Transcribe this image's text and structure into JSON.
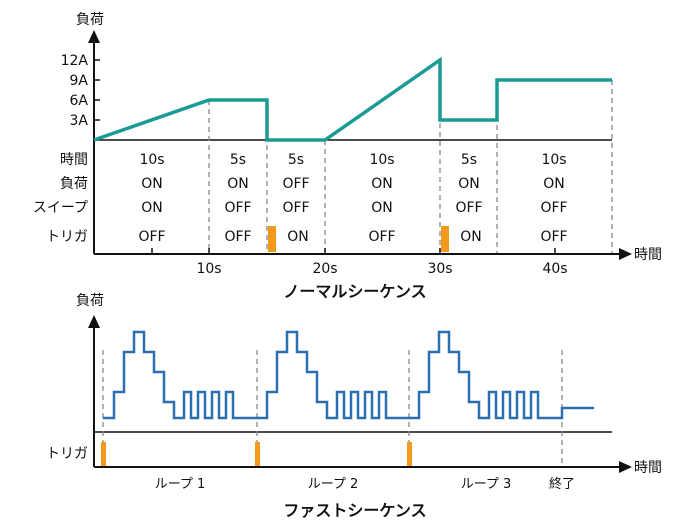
{
  "normal": {
    "load_axis_label": "負荷",
    "current_ticks": [
      "12A",
      "9A",
      "6A",
      "3A"
    ],
    "time_axis_label": "時間",
    "time_ticks": [
      "10s",
      "20s",
      "30s",
      "40s"
    ],
    "row_labels": [
      "時間",
      "負荷",
      "スイープ",
      "トリガ"
    ],
    "segments": [
      {
        "duration": "10s",
        "load": "ON",
        "sweep": "ON",
        "trigger": "OFF"
      },
      {
        "duration": "5s",
        "load": "ON",
        "sweep": "OFF",
        "trigger": "OFF"
      },
      {
        "duration": "5s",
        "load": "OFF",
        "sweep": "OFF",
        "trigger": "ON"
      },
      {
        "duration": "10s",
        "load": "ON",
        "sweep": "ON",
        "trigger": "OFF"
      },
      {
        "duration": "5s",
        "load": "ON",
        "sweep": "OFF",
        "trigger": "ON"
      },
      {
        "duration": "10s",
        "load": "ON",
        "sweep": "OFF",
        "trigger": "OFF"
      }
    ],
    "caption": "ノーマルシーケンス",
    "line_color": "#1a9b94",
    "trigger_color": "#f39a1e"
  },
  "fast": {
    "load_axis_label": "負荷",
    "trigger_label": "トリガ",
    "time_axis_label": "時間",
    "loops": [
      "ループ 1",
      "ループ 2",
      "ループ 3"
    ],
    "end_label": "終了",
    "caption": "ファストシーケンス",
    "line_color": "#2a6fb0",
    "trigger_color": "#f39a1e"
  }
}
